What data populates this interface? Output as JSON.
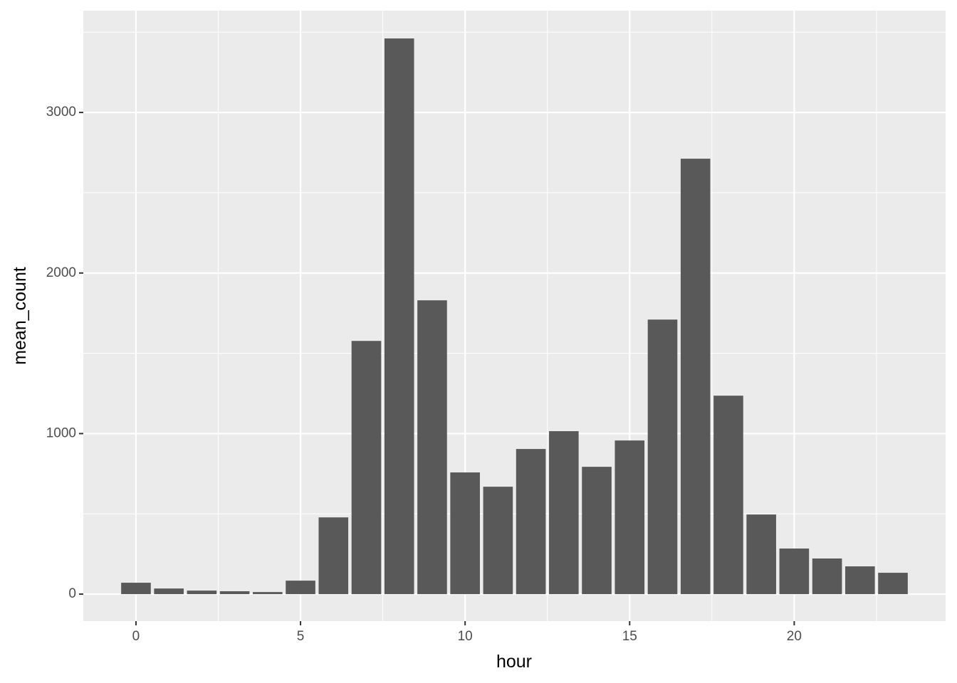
{
  "chart_data": {
    "type": "bar",
    "x_label": "hour",
    "y_label": "mean_count",
    "x": [
      0,
      1,
      2,
      3,
      4,
      5,
      6,
      7,
      8,
      9,
      10,
      11,
      12,
      13,
      14,
      15,
      16,
      17,
      18,
      19,
      20,
      21,
      22,
      23
    ],
    "values": [
      71,
      35,
      22,
      18,
      13,
      84,
      478,
      1577,
      3461,
      1830,
      758,
      669,
      904,
      1015,
      793,
      957,
      1710,
      2712,
      1236,
      496,
      284,
      222,
      173,
      133
    ],
    "color": "#595959",
    "xlim": [
      -1.6,
      24.6
    ],
    "xticks": [
      0,
      5,
      10,
      15,
      20
    ],
    "ylim": [
      -168,
      3634
    ],
    "yticks": [
      0,
      1000,
      2000,
      3000
    ],
    "grid": true
  }
}
